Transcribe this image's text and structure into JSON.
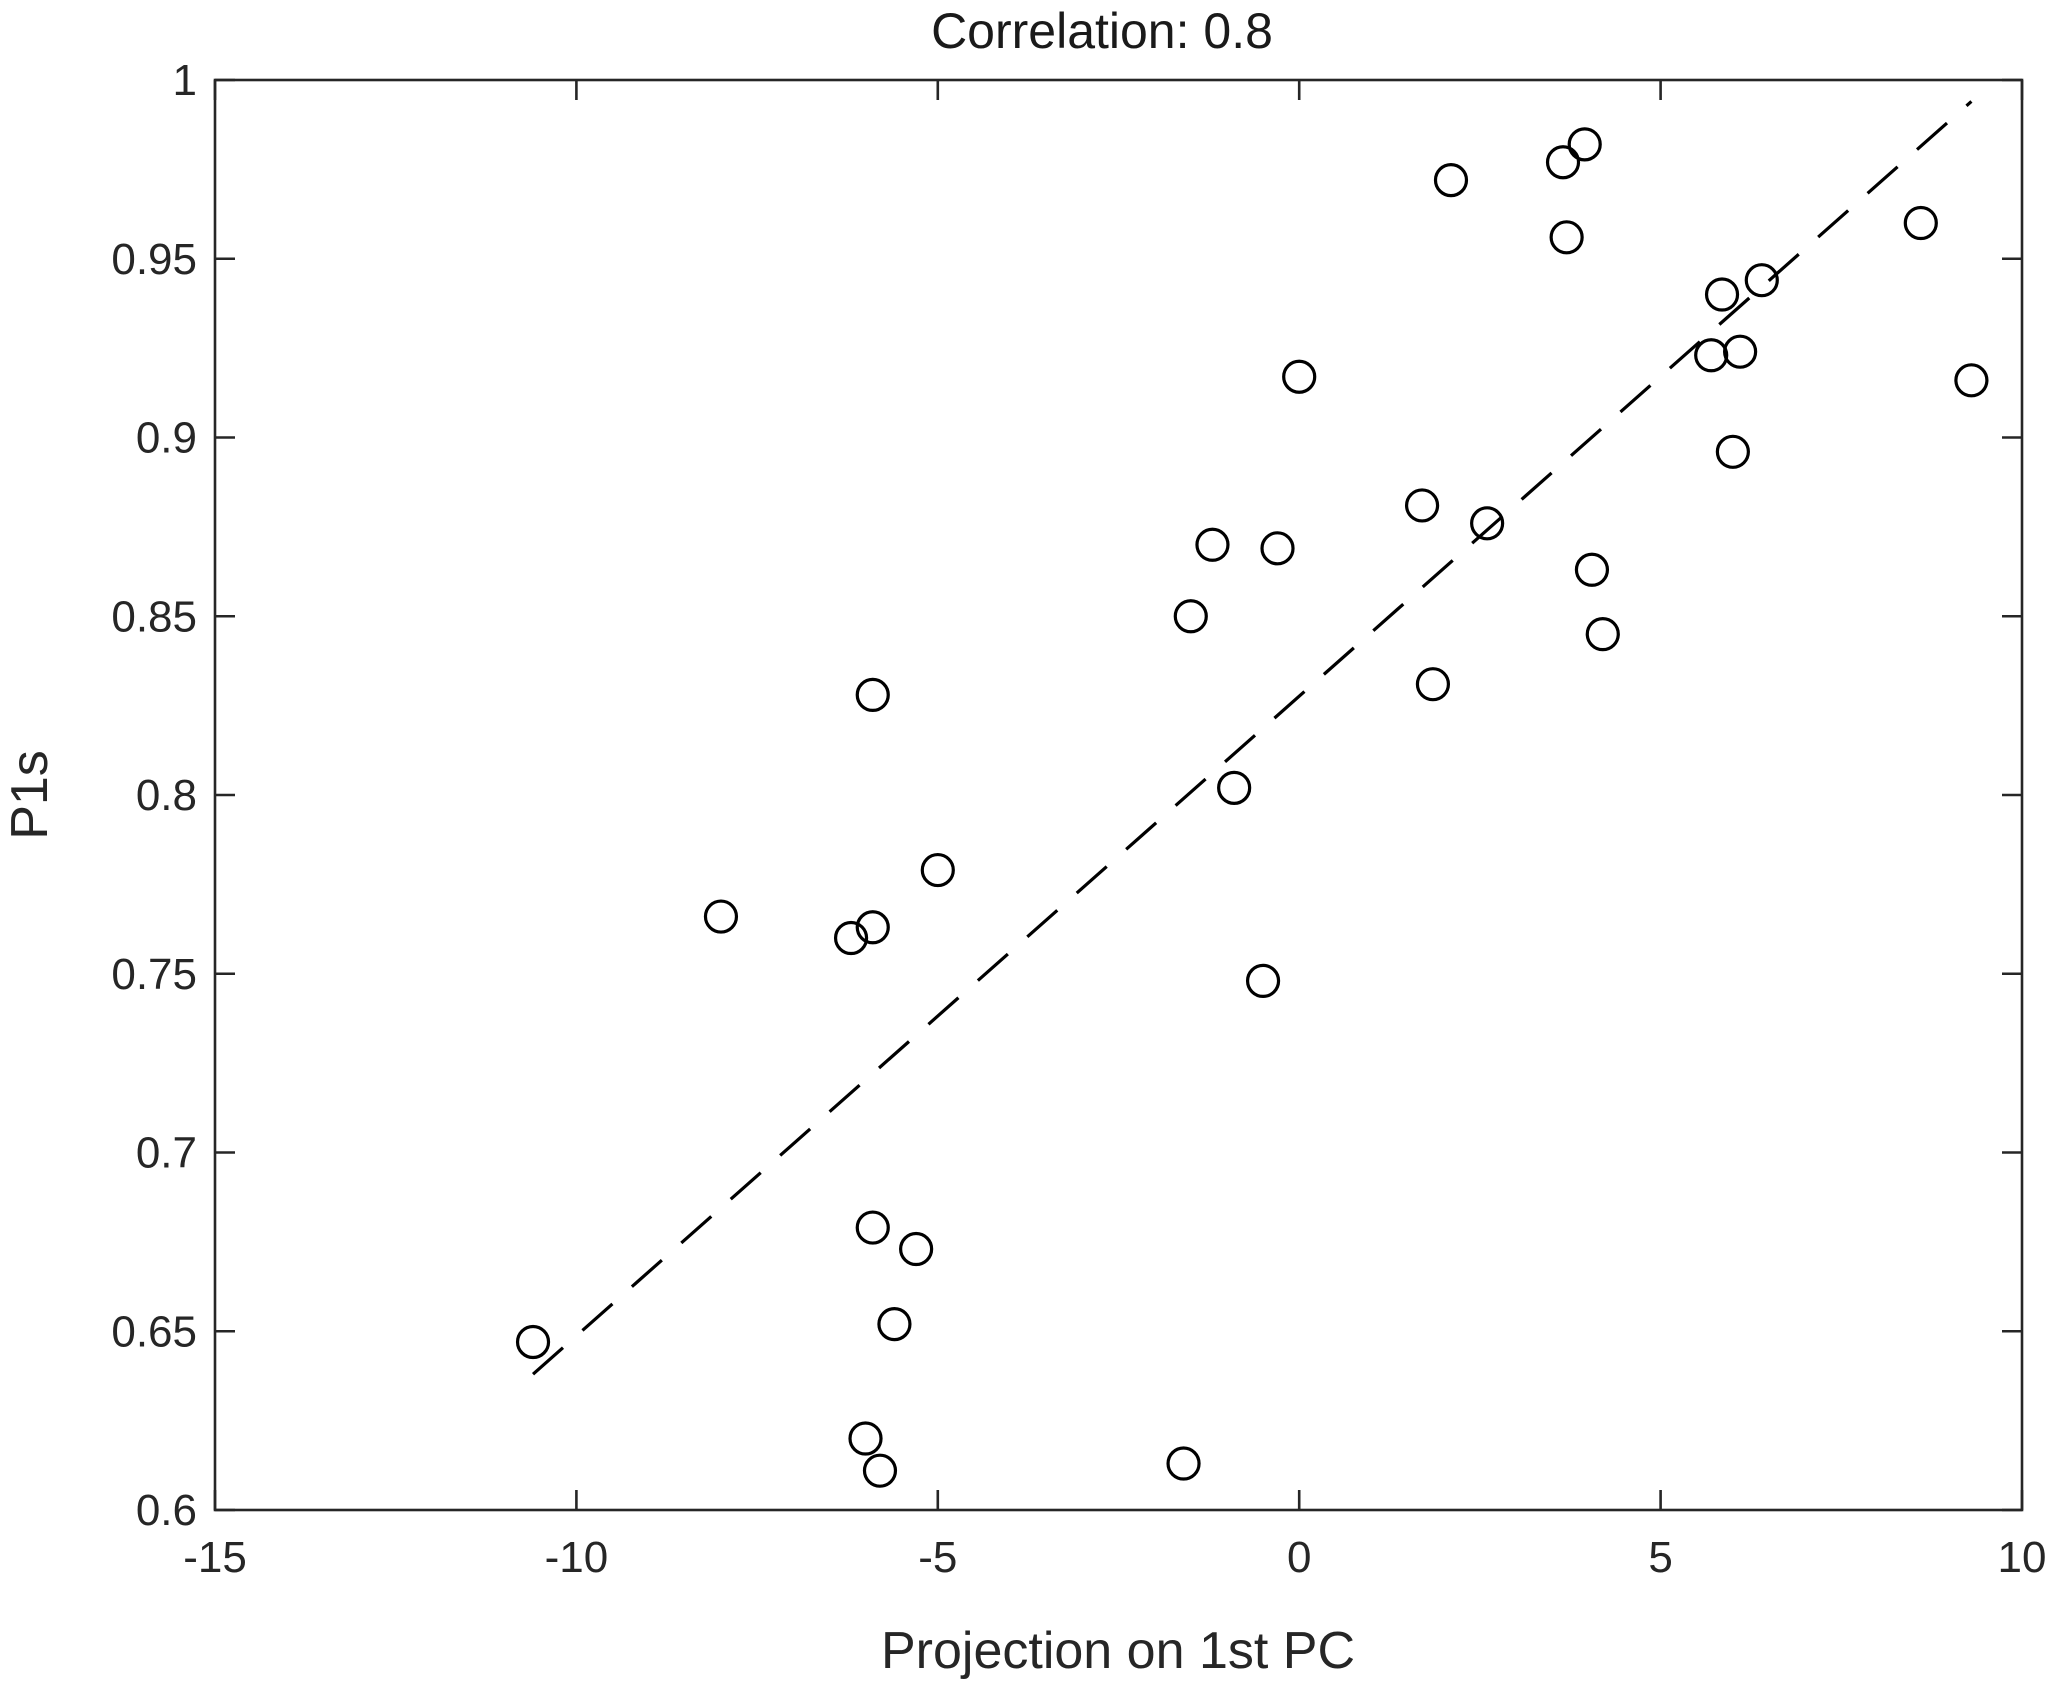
{
  "chart_data": {
    "type": "scatter",
    "title": "Correlation: 0.8",
    "xlabel": "Projection on 1st PC",
    "ylabel": "P1s",
    "xlim": [
      -15,
      10
    ],
    "ylim": [
      0.6,
      1
    ],
    "xticks": [
      -15,
      -10,
      -5,
      0,
      5,
      10
    ],
    "yticks": [
      0.6,
      0.65,
      0.7,
      0.75,
      0.8,
      0.85,
      0.9,
      0.95,
      1
    ],
    "xtick_labels": [
      "-15",
      "-10",
      "-5",
      "0",
      "5",
      "10"
    ],
    "ytick_labels": [
      "0.6",
      "0.65",
      "0.7",
      "0.75",
      "0.8",
      "0.85",
      "0.9",
      "0.95",
      "1"
    ],
    "grid": false,
    "marker": "open-circle",
    "points": [
      {
        "x": -10.6,
        "y": 0.647
      },
      {
        "x": -8.0,
        "y": 0.766
      },
      {
        "x": -6.2,
        "y": 0.76
      },
      {
        "x": -5.9,
        "y": 0.763
      },
      {
        "x": -5.9,
        "y": 0.828
      },
      {
        "x": -5.9,
        "y": 0.679
      },
      {
        "x": -6.0,
        "y": 0.62
      },
      {
        "x": -5.8,
        "y": 0.611
      },
      {
        "x": -5.6,
        "y": 0.652
      },
      {
        "x": -5.3,
        "y": 0.673
      },
      {
        "x": -5.0,
        "y": 0.779
      },
      {
        "x": -1.6,
        "y": 0.613
      },
      {
        "x": -1.5,
        "y": 0.85
      },
      {
        "x": -1.2,
        "y": 0.87
      },
      {
        "x": -0.9,
        "y": 0.802
      },
      {
        "x": -0.5,
        "y": 0.748
      },
      {
        "x": -0.3,
        "y": 0.869
      },
      {
        "x": 0.0,
        "y": 0.917
      },
      {
        "x": 1.7,
        "y": 0.881
      },
      {
        "x": 1.85,
        "y": 0.831
      },
      {
        "x": 2.1,
        "y": 0.972
      },
      {
        "x": 2.6,
        "y": 0.876
      },
      {
        "x": 3.65,
        "y": 0.977
      },
      {
        "x": 3.7,
        "y": 0.956
      },
      {
        "x": 3.95,
        "y": 0.982
      },
      {
        "x": 4.05,
        "y": 0.863
      },
      {
        "x": 4.2,
        "y": 0.845
      },
      {
        "x": 5.7,
        "y": 0.923
      },
      {
        "x": 5.85,
        "y": 0.94
      },
      {
        "x": 6.0,
        "y": 0.896
      },
      {
        "x": 6.1,
        "y": 0.924
      },
      {
        "x": 6.4,
        "y": 0.944
      },
      {
        "x": 8.6,
        "y": 0.96
      },
      {
        "x": 9.3,
        "y": 0.916
      }
    ],
    "fit_line": {
      "style": "dashed",
      "from": {
        "x": -10.6,
        "y": 0.638
      },
      "to": {
        "x": 9.3,
        "y": 0.994
      }
    }
  }
}
